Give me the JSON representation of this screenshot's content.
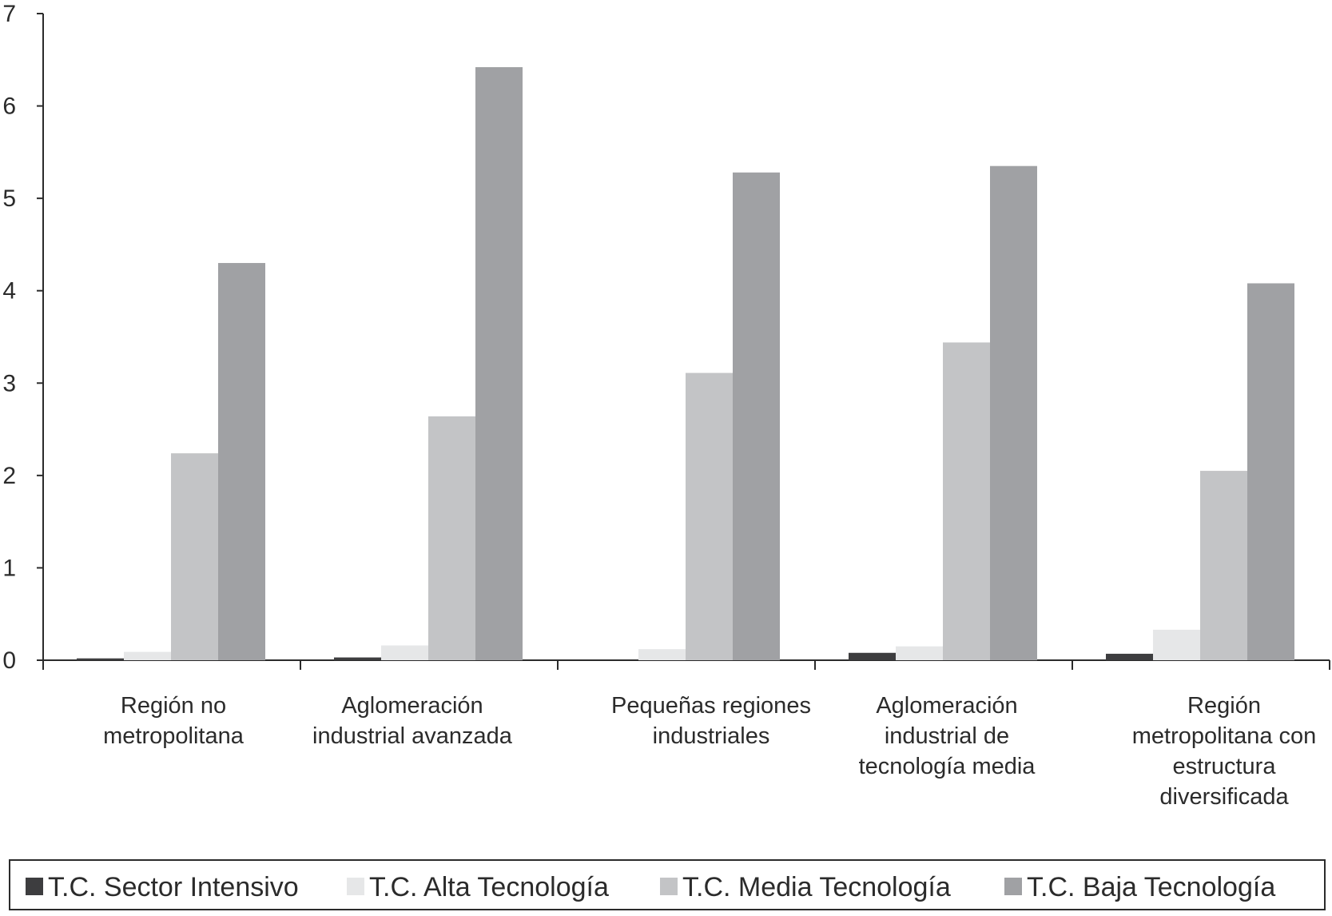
{
  "chart_data": {
    "type": "bar",
    "title": "",
    "xlabel": "",
    "ylabel": "",
    "ylim": [
      0,
      7
    ],
    "yticks": [
      0,
      1,
      2,
      3,
      4,
      5,
      6,
      7
    ],
    "grid": false,
    "legend_position": "bottom",
    "categories": [
      [
        "Región no",
        "metropolitana"
      ],
      [
        "Aglomeración",
        "industrial avanzada"
      ],
      [
        "Pequeñas regiones",
        "industriales"
      ],
      [
        "Aglomeración",
        "industrial de",
        "tecnología media"
      ],
      [
        "Región",
        "metropolitana con",
        "estructura",
        "diversificada"
      ]
    ],
    "series": [
      {
        "name": "T.C. Sector Intensivo",
        "color": "#3d3d3f",
        "values": [
          0.02,
          0.03,
          0.0,
          0.08,
          0.07
        ]
      },
      {
        "name": "T.C. Alta Tecnología",
        "color": "#e6e7e8",
        "values": [
          0.09,
          0.16,
          0.12,
          0.15,
          0.33
        ]
      },
      {
        "name": "T.C. Media Tecnología",
        "color": "#c3c4c6",
        "values": [
          2.24,
          2.64,
          3.11,
          3.44,
          2.05
        ]
      },
      {
        "name": "T.C. Baja Tecnología",
        "color": "#a0a1a4",
        "values": [
          4.3,
          6.42,
          5.28,
          5.35,
          4.08
        ]
      }
    ]
  }
}
